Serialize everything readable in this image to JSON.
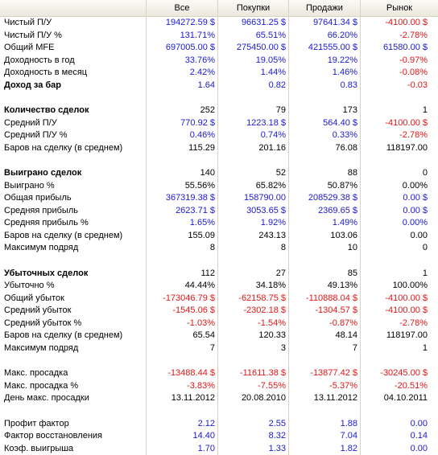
{
  "columns": [
    "",
    "Все",
    "Покупки",
    "Продажи",
    "Рынок"
  ],
  "rows": [
    {
      "label": "Чистый П/У",
      "values": [
        "194272.59 $",
        "96631.25 $",
        "97641.34 $",
        "-4100.00 $"
      ],
      "colors": [
        "blue",
        "blue",
        "blue",
        "red"
      ]
    },
    {
      "label": "Чистый П/У %",
      "values": [
        "131.71%",
        "65.51%",
        "66.20%",
        "-2.78%"
      ],
      "colors": [
        "blue",
        "blue",
        "blue",
        "red"
      ]
    },
    {
      "label": "Общий MFE",
      "values": [
        "697005.00 $",
        "275450.00 $",
        "421555.00 $",
        "61580.00 $"
      ],
      "colors": [
        "blue",
        "blue",
        "blue",
        "blue"
      ]
    },
    {
      "label": "Доходность в год",
      "values": [
        "33.76%",
        "19.05%",
        "19.22%",
        "-0.97%"
      ],
      "colors": [
        "blue",
        "blue",
        "blue",
        "red"
      ]
    },
    {
      "label": "Доходность в месяц",
      "values": [
        "2.42%",
        "1.44%",
        "1.46%",
        "-0.08%"
      ],
      "colors": [
        "blue",
        "blue",
        "blue",
        "red"
      ]
    },
    {
      "label": "Доход за бар",
      "values": [
        "1.64",
        "0.82",
        "0.83",
        "-0.03"
      ],
      "colors": [
        "blue",
        "blue",
        "blue",
        "red"
      ],
      "bold": true
    },
    {
      "blank": true
    },
    {
      "label": "Количество сделок",
      "values": [
        "252",
        "79",
        "173",
        "1"
      ],
      "colors": [
        "black",
        "black",
        "black",
        "black"
      ],
      "bold": true
    },
    {
      "label": "Средний П/У",
      "values": [
        "770.92 $",
        "1223.18 $",
        "564.40 $",
        "-4100.00 $"
      ],
      "colors": [
        "blue",
        "blue",
        "blue",
        "red"
      ]
    },
    {
      "label": "Средний П/У %",
      "values": [
        "0.46%",
        "0.74%",
        "0.33%",
        "-2.78%"
      ],
      "colors": [
        "blue",
        "blue",
        "blue",
        "red"
      ]
    },
    {
      "label": "Баров на сделку (в среднем)",
      "values": [
        "115.29",
        "201.16",
        "76.08",
        "118197.00"
      ],
      "colors": [
        "black",
        "black",
        "black",
        "black"
      ]
    },
    {
      "blank": true
    },
    {
      "label": "Выиграно сделок",
      "values": [
        "140",
        "52",
        "88",
        "0"
      ],
      "colors": [
        "black",
        "black",
        "black",
        "black"
      ],
      "bold": true
    },
    {
      "label": "Выиграно %",
      "values": [
        "55.56%",
        "65.82%",
        "50.87%",
        "0.00%"
      ],
      "colors": [
        "black",
        "black",
        "black",
        "black"
      ]
    },
    {
      "label": "Общая прибыль",
      "values": [
        "367319.38 $",
        "158790.00",
        "208529.38 $",
        "0.00 $"
      ],
      "colors": [
        "blue",
        "blue",
        "blue",
        "blue"
      ]
    },
    {
      "label": "Средняя прибыль",
      "values": [
        "2623.71 $",
        "3053.65 $",
        "2369.65 $",
        "0.00 $"
      ],
      "colors": [
        "blue",
        "blue",
        "blue",
        "blue"
      ]
    },
    {
      "label": "Средняя прибыль %",
      "values": [
        "1.65%",
        "1.92%",
        "1.49%",
        "0.00%"
      ],
      "colors": [
        "blue",
        "blue",
        "blue",
        "blue"
      ]
    },
    {
      "label": "Баров на сделку (в среднем)",
      "values": [
        "155.09",
        "243.13",
        "103.06",
        "0.00"
      ],
      "colors": [
        "black",
        "black",
        "black",
        "black"
      ]
    },
    {
      "label": "Максимум подряд",
      "values": [
        "8",
        "8",
        "10",
        "0"
      ],
      "colors": [
        "black",
        "black",
        "black",
        "black"
      ]
    },
    {
      "blank": true
    },
    {
      "label": "Убыточных сделок",
      "values": [
        "112",
        "27",
        "85",
        "1"
      ],
      "colors": [
        "black",
        "black",
        "black",
        "black"
      ],
      "bold": true
    },
    {
      "label": "Убыточно %",
      "values": [
        "44.44%",
        "34.18%",
        "49.13%",
        "100.00%"
      ],
      "colors": [
        "black",
        "black",
        "black",
        "black"
      ]
    },
    {
      "label": "Общий убыток",
      "values": [
        "-173046.79 $",
        "-62158.75 $",
        "-110888.04 $",
        "-4100.00 $"
      ],
      "colors": [
        "red",
        "red",
        "red",
        "red"
      ]
    },
    {
      "label": "Средний убыток",
      "values": [
        "-1545.06 $",
        "-2302.18 $",
        "-1304.57 $",
        "-4100.00 $"
      ],
      "colors": [
        "red",
        "red",
        "red",
        "red"
      ]
    },
    {
      "label": "Средний убыток %",
      "values": [
        "-1.03%",
        "-1.54%",
        "-0.87%",
        "-2.78%"
      ],
      "colors": [
        "red",
        "red",
        "red",
        "red"
      ]
    },
    {
      "label": "Баров на сделку (в среднем)",
      "values": [
        "65.54",
        "120.33",
        "48.14",
        "118197.00"
      ],
      "colors": [
        "black",
        "black",
        "black",
        "black"
      ]
    },
    {
      "label": "Максимум подряд",
      "values": [
        "7",
        "3",
        "7",
        "1"
      ],
      "colors": [
        "black",
        "black",
        "black",
        "black"
      ]
    },
    {
      "blank": true
    },
    {
      "label": "Макс. просадка",
      "values": [
        "-13488.44 $",
        "-11611.38 $",
        "-13877.42 $",
        "-30245.00 $"
      ],
      "colors": [
        "red",
        "red",
        "red",
        "red"
      ]
    },
    {
      "label": "Макс. просадка %",
      "values": [
        "-3.83%",
        "-7.55%",
        "-5.37%",
        "-20.51%"
      ],
      "colors": [
        "red",
        "red",
        "red",
        "red"
      ]
    },
    {
      "label": "День макс. просадки",
      "values": [
        "13.11.2012",
        "20.08.2010",
        "13.11.2012",
        "04.10.2011"
      ],
      "colors": [
        "black",
        "black",
        "black",
        "black"
      ]
    },
    {
      "blank": true
    },
    {
      "label": "Профит фактор",
      "values": [
        "2.12",
        "2.55",
        "1.88",
        "0.00"
      ],
      "colors": [
        "blue",
        "blue",
        "blue",
        "blue"
      ]
    },
    {
      "label": "Фактор восстановления",
      "values": [
        "14.40",
        "8.32",
        "7.04",
        "0.14"
      ],
      "colors": [
        "blue",
        "blue",
        "blue",
        "blue"
      ]
    },
    {
      "label": "Коэф. выигрыша",
      "values": [
        "1.70",
        "1.33",
        "1.82",
        "0.00"
      ],
      "colors": [
        "blue",
        "blue",
        "blue",
        "blue"
      ]
    }
  ]
}
